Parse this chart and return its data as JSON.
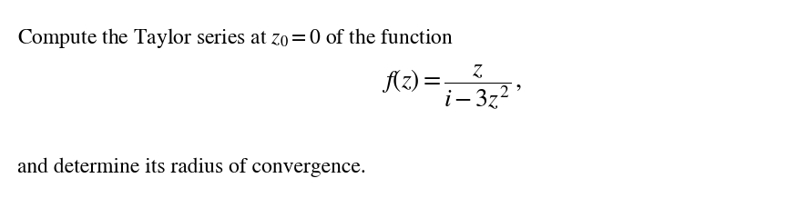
{
  "line1": "Compute the Taylor series at $z_0 = 0$ of the function",
  "line2": "$f(z) = \\dfrac{z}{i - 3z^2}\\,,$",
  "line3": "and determine its radius of convergence.",
  "bg_color": "#ffffff",
  "text_color": "#000000",
  "font_size_main": 17,
  "font_size_formula": 20,
  "figsize": [
    8.86,
    2.18
  ],
  "dpi": 100
}
